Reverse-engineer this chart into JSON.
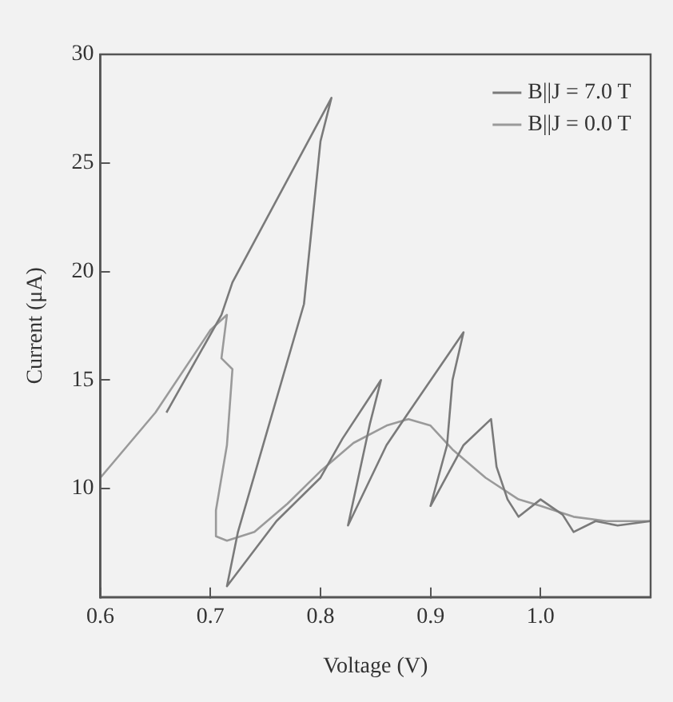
{
  "chart_data": {
    "type": "line",
    "xlabel": "Voltage (V)",
    "ylabel": "Current (μA)",
    "xlim": [
      0.6,
      1.1
    ],
    "xticks": [
      0.6,
      0.7,
      0.8,
      0.9,
      {
        "value": 1,
        "label": "1.0"
      }
    ],
    "ylim": [
      5,
      30
    ],
    "yticks": [
      10,
      15,
      20,
      25,
      30
    ],
    "grid": false,
    "legend": "top right",
    "marker": "none",
    "line_style": "solid",
    "series": [
      {
        "name": "B||J = 7.0 T",
        "color": "#7a7a7a",
        "x": [
          0.66,
          0.71,
          0.72,
          0.81,
          0.8,
          0.785,
          0.725,
          0.715,
          0.76,
          0.8,
          0.82,
          0.855,
          0.845,
          0.825,
          0.86,
          0.88,
          0.93,
          0.92,
          0.915,
          0.9,
          0.93,
          0.955,
          0.96,
          0.97,
          0.98,
          1.0,
          1.02,
          1.03,
          1.05,
          1.07,
          1.1
        ],
        "values": [
          13.5,
          18,
          19.5,
          28,
          26,
          18.5,
          8,
          5.5,
          8.5,
          10.5,
          12.3,
          15,
          13,
          8.3,
          12,
          13.5,
          17.2,
          15,
          12,
          9.2,
          12,
          13.2,
          11,
          9.5,
          8.7,
          9.5,
          8.8,
          8,
          8.5,
          8.3,
          8.5
        ]
      },
      {
        "name": "B||J = 0.0 T",
        "color": "#9a9a9a",
        "x": [
          0.6,
          0.65,
          0.7,
          0.715,
          0.71,
          0.72,
          0.715,
          0.705,
          0.705,
          0.715,
          0.74,
          0.77,
          0.8,
          0.83,
          0.86,
          0.88,
          0.9,
          0.92,
          0.95,
          0.98,
          1.0,
          1.03,
          1.06,
          1.1
        ],
        "values": [
          10.5,
          13.5,
          17.3,
          18,
          16,
          15.5,
          12,
          9,
          7.8,
          7.6,
          8,
          9.3,
          10.8,
          12.1,
          12.9,
          13.2,
          12.9,
          11.8,
          10.5,
          9.5,
          9.2,
          8.7,
          8.5,
          8.5
        ]
      }
    ]
  }
}
